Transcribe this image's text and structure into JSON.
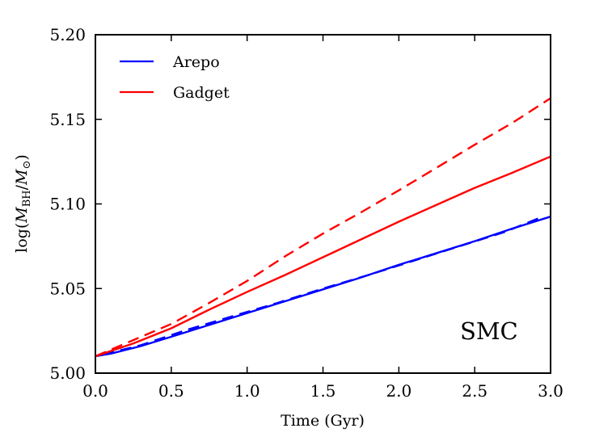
{
  "chart_data": {
    "type": "line",
    "title": "",
    "xlabel": "Time (Gyr)",
    "ylabel_parts": {
      "prefix": "log(",
      "M1": "M",
      "sub1": "BH",
      "slash": "/",
      "M2": "M",
      "sub2": "⊙",
      "suffix": ")"
    },
    "xlim": [
      0.0,
      3.0
    ],
    "ylim": [
      5.0,
      5.2
    ],
    "xticks": [
      0.0,
      0.5,
      1.0,
      1.5,
      2.0,
      2.5,
      3.0
    ],
    "xtick_labels": [
      "0.0",
      "0.5",
      "1.0",
      "1.5",
      "2.0",
      "2.5",
      "3.0"
    ],
    "yticks": [
      5.0,
      5.05,
      5.1,
      5.15,
      5.2
    ],
    "ytick_labels": [
      "5.00",
      "5.05",
      "5.10",
      "5.15",
      "5.20"
    ],
    "legend": {
      "location": "top-left",
      "entries": [
        {
          "label": "Arepo",
          "color": "#0000ff"
        },
        {
          "label": "Gadget",
          "color": "#ff0000"
        }
      ]
    },
    "annotation": "SMC",
    "series": [
      {
        "name": "Arepo (solid)",
        "color": "#0000ff",
        "style": "solid",
        "x": [
          0.0,
          0.1,
          0.3,
          0.5,
          0.75,
          1.0,
          1.25,
          1.5,
          1.75,
          2.0,
          2.25,
          2.5,
          2.75,
          3.0
        ],
        "y": [
          5.01,
          5.0115,
          5.016,
          5.0215,
          5.0285,
          5.0355,
          5.0425,
          5.0495,
          5.0565,
          5.064,
          5.071,
          5.078,
          5.0855,
          5.0925
        ]
      },
      {
        "name": "Arepo (dashed)",
        "color": "#0000ff",
        "style": "dashed",
        "x": [
          0.05,
          0.3,
          0.6,
          0.9,
          1.2,
          1.5,
          1.8,
          2.1,
          2.4,
          2.7,
          2.92
        ],
        "y": [
          5.011,
          5.0165,
          5.0255,
          5.0335,
          5.0415,
          5.05,
          5.058,
          5.0665,
          5.075,
          5.0835,
          5.0915
        ]
      },
      {
        "name": "Gadget (solid)",
        "color": "#ff0000",
        "style": "solid",
        "x": [
          0.0,
          0.25,
          0.5,
          0.75,
          1.0,
          1.25,
          1.5,
          1.75,
          2.0,
          2.25,
          2.5,
          2.75,
          3.0
        ],
        "y": [
          5.01,
          5.0175,
          5.0265,
          5.0375,
          5.048,
          5.058,
          5.0685,
          5.079,
          5.0895,
          5.0995,
          5.1095,
          5.1185,
          5.128
        ]
      },
      {
        "name": "Gadget (dashed)",
        "color": "#ff0000",
        "style": "dashed",
        "x": [
          0.0,
          0.25,
          0.5,
          0.75,
          1.0,
          1.25,
          1.5,
          1.75,
          2.0,
          2.25,
          2.5,
          2.75,
          3.0
        ],
        "y": [
          5.01,
          5.0195,
          5.029,
          5.0415,
          5.0545,
          5.069,
          5.0825,
          5.095,
          5.108,
          5.1215,
          5.135,
          5.148,
          5.1625
        ]
      }
    ]
  }
}
